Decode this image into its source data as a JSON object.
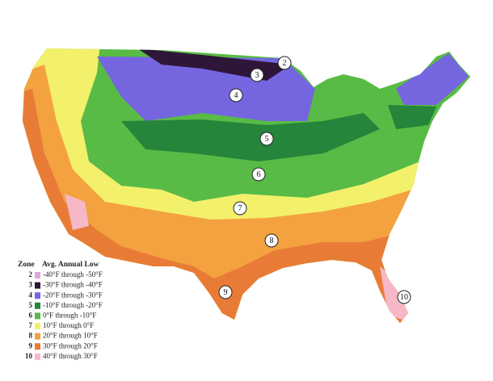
{
  "legend": {
    "header": [
      "Zone",
      "Avg. Annual Low"
    ],
    "rows": [
      {
        "zone": "2",
        "range": "-40°F through -50°F",
        "color": "#d9a9dc"
      },
      {
        "zone": "3",
        "range": "-30°F through -40°F",
        "color": "#2e1638"
      },
      {
        "zone": "4",
        "range": "-20°F through -30°F",
        "color": "#7566e0"
      },
      {
        "zone": "5",
        "range": "-10°F through -20°F",
        "color": "#25853a"
      },
      {
        "zone": "6",
        "range": "0°F through -10°F",
        "color": "#58bb45"
      },
      {
        "zone": "7",
        "range": "10°F through 0°F",
        "color": "#f3f06b"
      },
      {
        "zone": "8",
        "range": "20°F through 10°F",
        "color": "#f3a23f"
      },
      {
        "zone": "9",
        "range": "30°F through 20°F",
        "color": "#e87c37"
      },
      {
        "zone": "10",
        "range": "40°F through 30°F",
        "color": "#f6b7c7"
      }
    ]
  },
  "map_labels": [
    "2",
    "3",
    "4",
    "5",
    "6",
    "7",
    "8",
    "9",
    "10"
  ]
}
